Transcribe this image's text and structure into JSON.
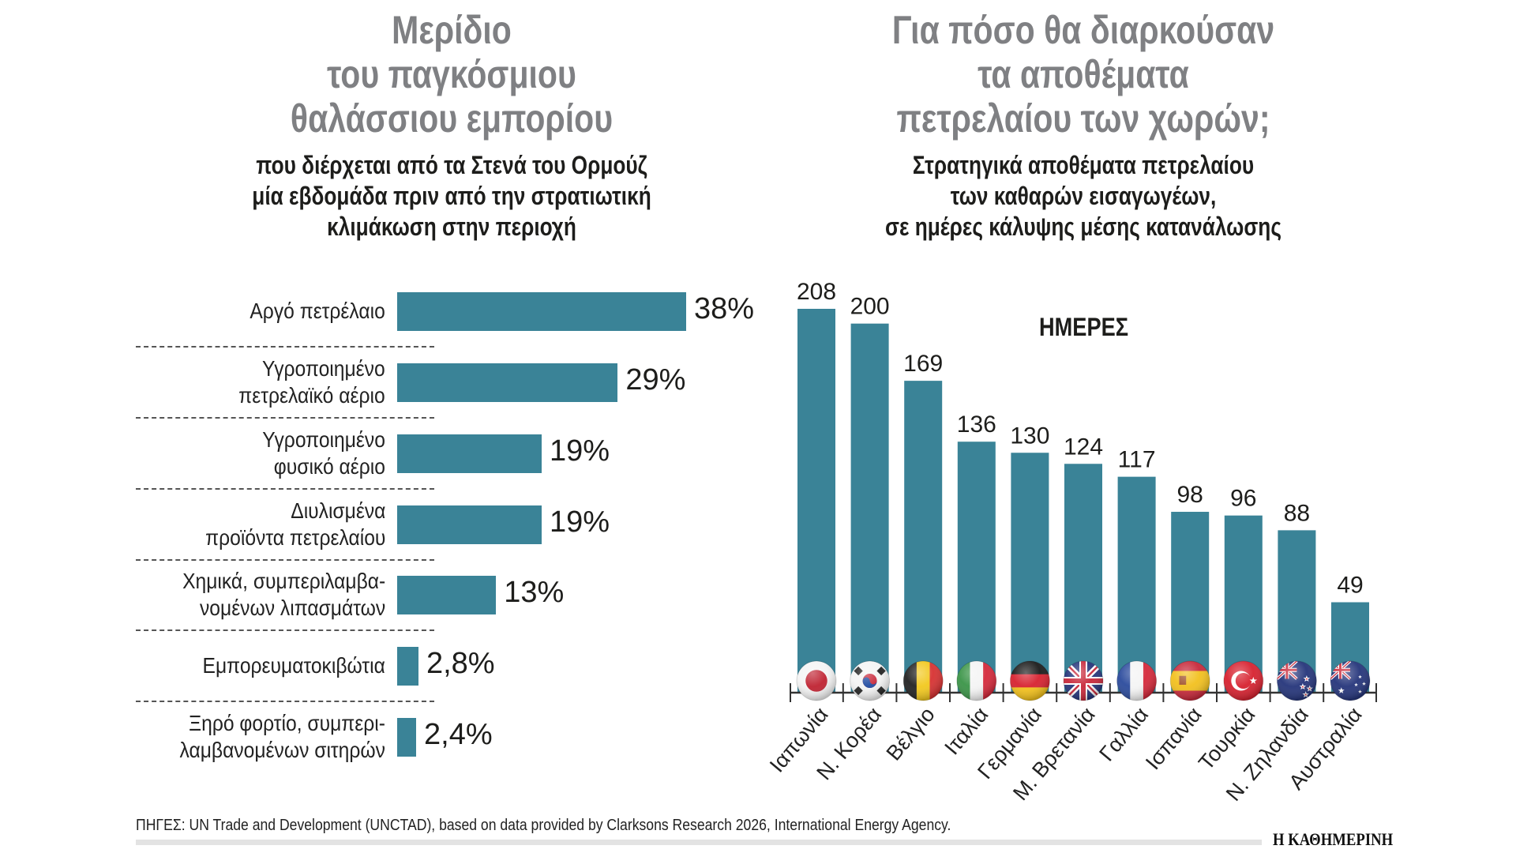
{
  "left_panel": {
    "title_lines": [
      "Μερίδιο",
      "του παγκόσμιου",
      "θαλάσσιου εμπορίου"
    ],
    "subtitle_lines": [
      "που διέρχεται από τα Στενά του Ορμούζ",
      "μία εβδομάδα πριν από την στρατιωτική",
      "κλιμάκωση στην περιοχή"
    ]
  },
  "right_panel": {
    "title_lines": [
      "Για πόσο θα διαρκούσαν",
      "τα αποθέματα",
      "πετρελαίου των χωρών;"
    ],
    "subtitle_lines": [
      "Στρατηγικά αποθέματα πετρελαίου",
      "των καθαρών εισαγωγέων,",
      "σε ημέρες κάλυψης μέσης κατανάλωσης"
    ],
    "unit_label": "ΗΜΕΡΕΣ"
  },
  "chart_data": [
    {
      "type": "bar",
      "orientation": "horizontal",
      "title": "Μερίδιο του παγκόσμιου θαλάσσιου εμπορίου",
      "subtitle": "που διέρχεται από τα Στενά του Ορμούζ μία εβδομάδα πριν από την στρατιωτική κλιμάκωση στην περιοχή",
      "unit": "%",
      "categories": [
        [
          "Αργό πετρέλαιο"
        ],
        [
          "Υγροποιημένο",
          "πετρελαϊκό αέριο"
        ],
        [
          "Υγροποιημένο",
          "φυσικό αέριο"
        ],
        [
          "Διυλισμένα",
          "προϊόντα πετρελαίου"
        ],
        [
          "Χημικά, συμπεριλαμβα-",
          "νομένων λιπασμάτων"
        ],
        [
          "Εμπορευματοκιβώτια"
        ],
        [
          "Ξηρό φορτίο, συμπερι-",
          "λαμβανομένων σιτηρών"
        ]
      ],
      "values": [
        38,
        29,
        19,
        19,
        13,
        2.8,
        2.4
      ],
      "value_labels": [
        "38%",
        "29%",
        "19%",
        "19%",
        "13%",
        "2,8%",
        "2,4%"
      ],
      "bar_color": "#3a8397",
      "xlim": [
        0,
        38
      ]
    },
    {
      "type": "bar",
      "orientation": "vertical",
      "title": "Για πόσο θα διαρκούσαν τα αποθέματα πετρελαίου των χωρών;",
      "subtitle": "Στρατηγικά αποθέματα πετρελαίου των καθαρών εισαγωγέων, σε ημέρες κάλυψης μέσης κατανάλωσης",
      "ylabel": "ΗΜΕΡΕΣ",
      "categories": [
        "Ιαπωνία",
        "Ν. Κορέα",
        "Βέλγιο",
        "Ιταλία",
        "Γερμανία",
        "Μ. Βρετανία",
        "Γαλλία",
        "Ισπανία",
        "Τουρκία",
        "Ν. Ζηλανδία",
        "Αυστραλία"
      ],
      "flags": [
        "japan-flag",
        "south-korea-flag",
        "belgium-flag",
        "italy-flag",
        "germany-flag",
        "uk-flag",
        "france-flag",
        "spain-flag",
        "turkey-flag",
        "new-zealand-flag",
        "australia-flag"
      ],
      "values": [
        208,
        200,
        169,
        136,
        130,
        124,
        117,
        98,
        96,
        88,
        49
      ],
      "bar_color": "#3a8397",
      "ylim": [
        0,
        208
      ],
      "grid": false
    }
  ],
  "footer": {
    "source": "ΠΗΓΕΣ: UN Trade and Development (UNCTAD), based on data provided by Clarksons Research 2026, International Energy Agency.",
    "brand": "Η ΚΑΘΗΜΕΡΙΝΗ"
  }
}
